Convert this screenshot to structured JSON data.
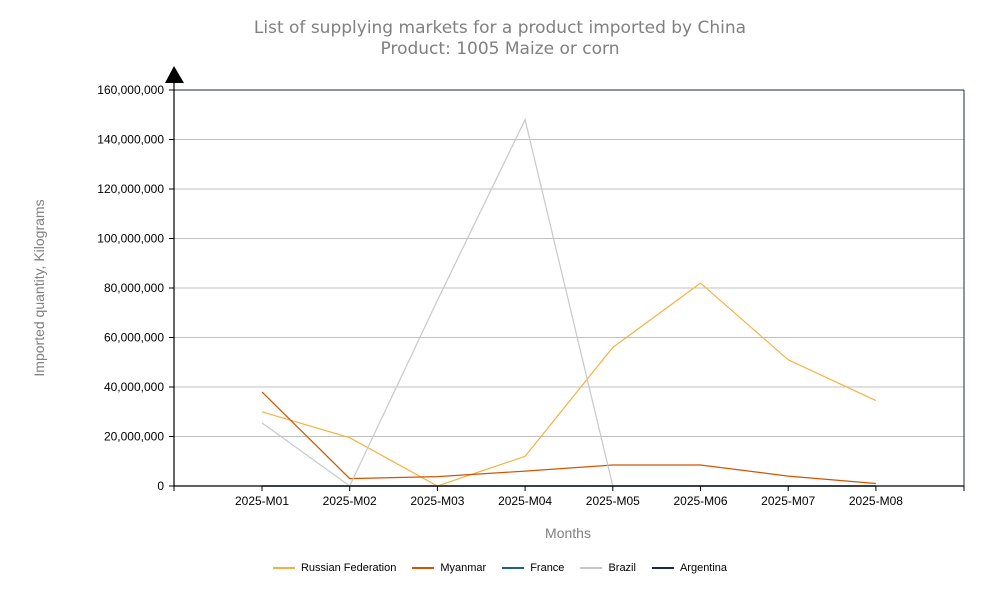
{
  "title": {
    "line1": "List of supplying markets for a product imported by China",
    "line2": "Product: 1005 Maize or corn"
  },
  "chart_data": {
    "type": "line",
    "xlabel": "Months",
    "ylabel": "Imported quantity, Kilograms",
    "categories": [
      "2025-M01",
      "2025-M02",
      "2025-M03",
      "2025-M04",
      "2025-M05",
      "2025-M06",
      "2025-M07",
      "2025-M08"
    ],
    "ylim": [
      0,
      160000000
    ],
    "yticks": [
      0,
      20000000,
      40000000,
      60000000,
      80000000,
      100000000,
      120000000,
      140000000,
      160000000
    ],
    "ytick_labels": [
      "0",
      "20,000,000",
      "40,000,000",
      "60,000,000",
      "80,000,000",
      "100,000,000",
      "120,000,000",
      "140,000,000",
      "160,000,000"
    ],
    "grid": true,
    "legend_position": "bottom",
    "series": [
      {
        "name": "Russian Federation",
        "color": "#f5b041",
        "values": [
          30000000,
          19500000,
          0,
          12000000,
          56000000,
          82000000,
          51000000,
          34500000
        ]
      },
      {
        "name": "Myanmar",
        "color": "#d35400",
        "values": [
          38000000,
          3000000,
          3800000,
          6000000,
          8500000,
          8500000,
          4000000,
          1000000
        ]
      },
      {
        "name": "France",
        "color": "#1f618d",
        "values": [
          0,
          0,
          0,
          0,
          0,
          0,
          0,
          0
        ]
      },
      {
        "name": "Brazil",
        "color": "#c8c8c8",
        "values": [
          25500000,
          0,
          75000000,
          148000000,
          0,
          null,
          null,
          null
        ]
      },
      {
        "name": "Argentina",
        "color": "#1b2a4a",
        "values": [
          0,
          0,
          0,
          0,
          0,
          0,
          0,
          0
        ]
      }
    ]
  }
}
